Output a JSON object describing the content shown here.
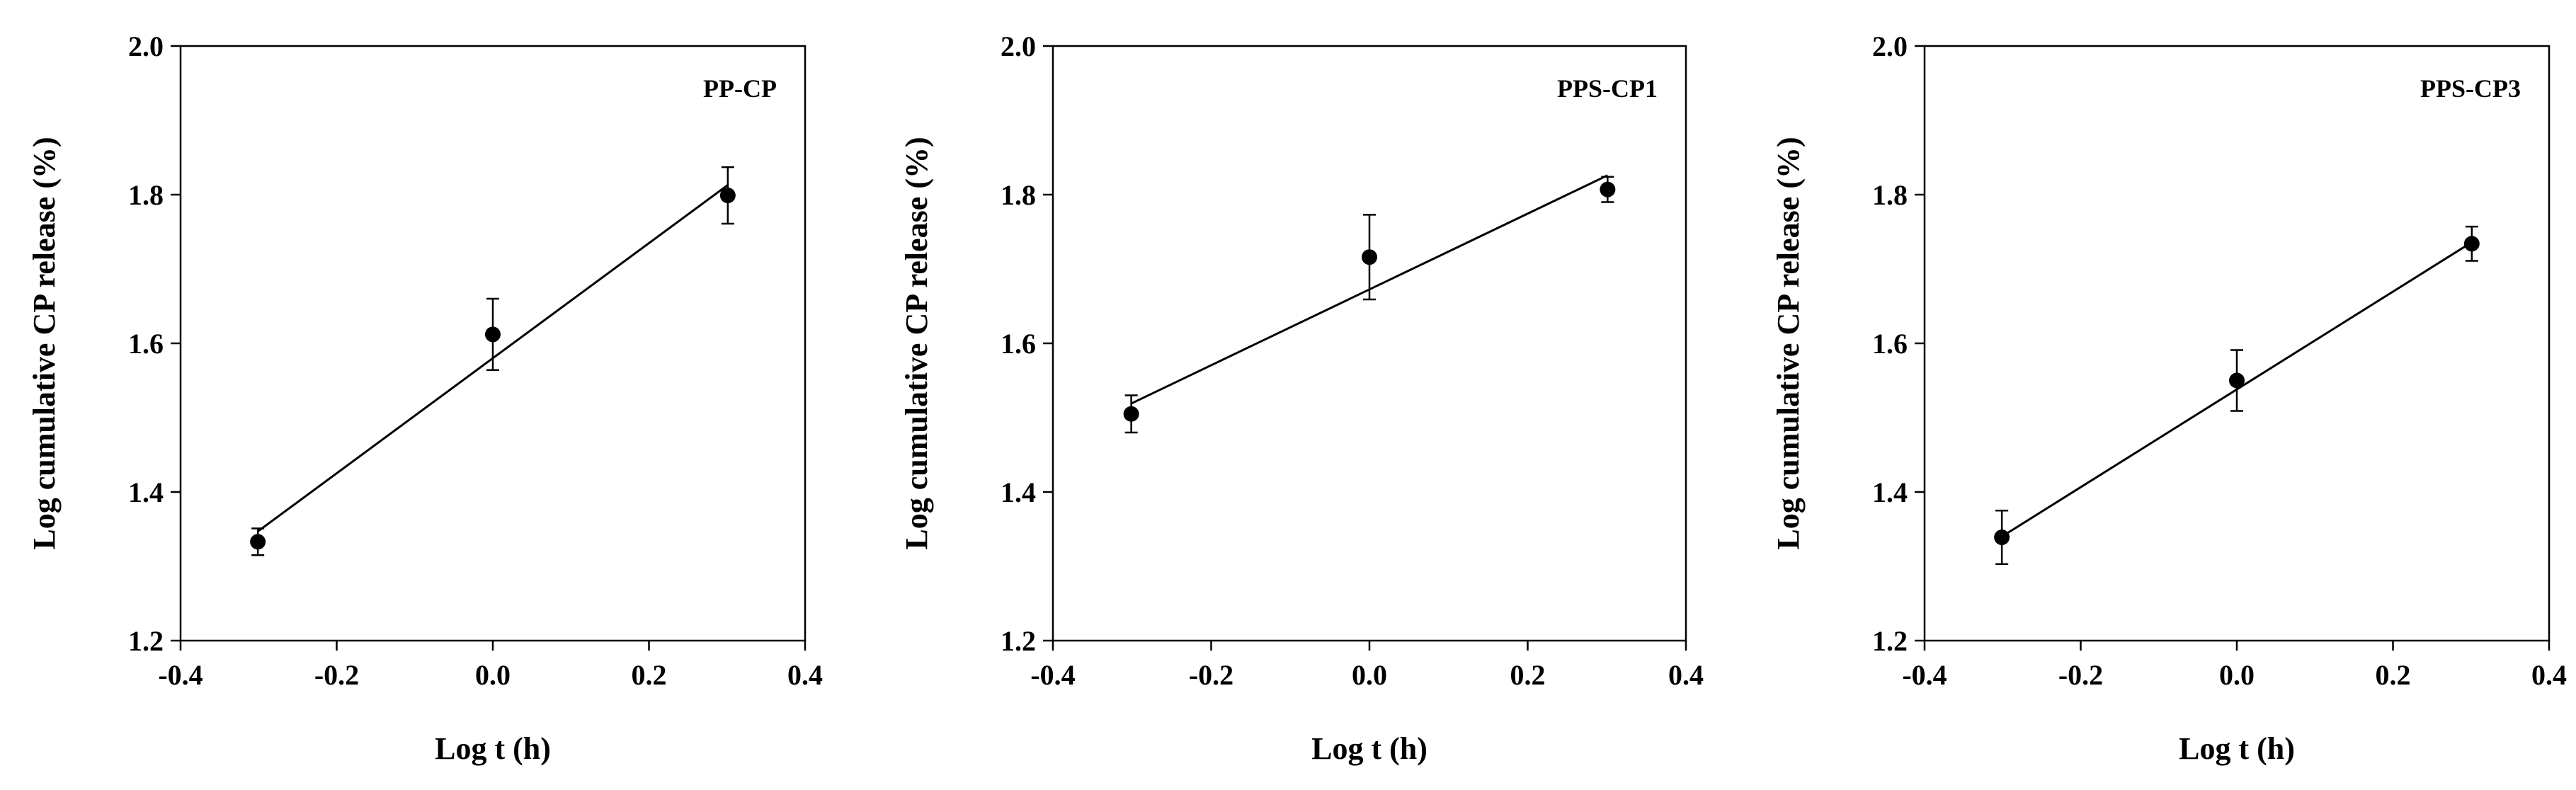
{
  "chart_data": [
    {
      "type": "scatter",
      "title": "PP-CP",
      "xlabel": "Log t (h)",
      "ylabel": "Log cumulative CP release (%)",
      "xlim": [
        -0.4,
        0.4
      ],
      "ylim": [
        1.2,
        2.0
      ],
      "xticks": [
        -0.4,
        -0.2,
        0.0,
        0.2,
        0.4
      ],
      "yticks": [
        1.2,
        1.4,
        1.6,
        1.8,
        2.0
      ],
      "xtick_labels": [
        "-0.4",
        "-0.2",
        "0.0",
        "0.2",
        "0.4"
      ],
      "ytick_labels": [
        "1.2",
        "1.4",
        "1.6",
        "1.8",
        "2.0"
      ],
      "x": [
        -0.301,
        0.0,
        0.301
      ],
      "y": [
        1.333,
        1.612,
        1.799
      ],
      "err": [
        0.018,
        0.048,
        0.038
      ],
      "fit_line": {
        "x": [
          -0.301,
          0.301
        ],
        "y": [
          1.347,
          1.813
        ]
      },
      "grid": false
    },
    {
      "type": "scatter",
      "title": "PPS-CP1",
      "xlabel": "Log t (h)",
      "ylabel": "Log cumulative CP release (%)",
      "xlim": [
        -0.4,
        0.4
      ],
      "ylim": [
        1.2,
        2.0
      ],
      "xticks": [
        -0.4,
        -0.2,
        0.0,
        0.2,
        0.4
      ],
      "yticks": [
        1.2,
        1.4,
        1.6,
        1.8,
        2.0
      ],
      "xtick_labels": [
        "-0.4",
        "-0.2",
        "0.0",
        "0.2",
        "0.4"
      ],
      "ytick_labels": [
        "1.2",
        "1.4",
        "1.6",
        "1.8",
        "2.0"
      ],
      "x": [
        -0.301,
        0.0,
        0.301
      ],
      "y": [
        1.505,
        1.716,
        1.807
      ],
      "err": [
        0.025,
        0.057,
        0.017
      ],
      "fit_line": {
        "x": [
          -0.301,
          0.301
        ],
        "y": [
          1.519,
          1.826
        ]
      },
      "grid": false
    },
    {
      "type": "scatter",
      "title": "PPS-CP3",
      "xlabel": "Log t (h)",
      "ylabel": "Log cumulative CP release (%)",
      "xlim": [
        -0.4,
        0.4
      ],
      "ylim": [
        1.2,
        2.0
      ],
      "xticks": [
        -0.4,
        -0.2,
        0.0,
        0.2,
        0.4
      ],
      "yticks": [
        1.2,
        1.4,
        1.6,
        1.8,
        2.0
      ],
      "xtick_labels": [
        "-0.4",
        "-0.2",
        "0.0",
        "0.2",
        "0.4"
      ],
      "ytick_labels": [
        "1.2",
        "1.4",
        "1.6",
        "1.8",
        "2.0"
      ],
      "x": [
        -0.301,
        0.0,
        0.301
      ],
      "y": [
        1.339,
        1.55,
        1.734
      ],
      "err": [
        0.036,
        0.041,
        0.023
      ],
      "fit_line": {
        "x": [
          -0.301,
          0.301
        ],
        "y": [
          1.34,
          1.736
        ]
      },
      "grid": false
    }
  ]
}
